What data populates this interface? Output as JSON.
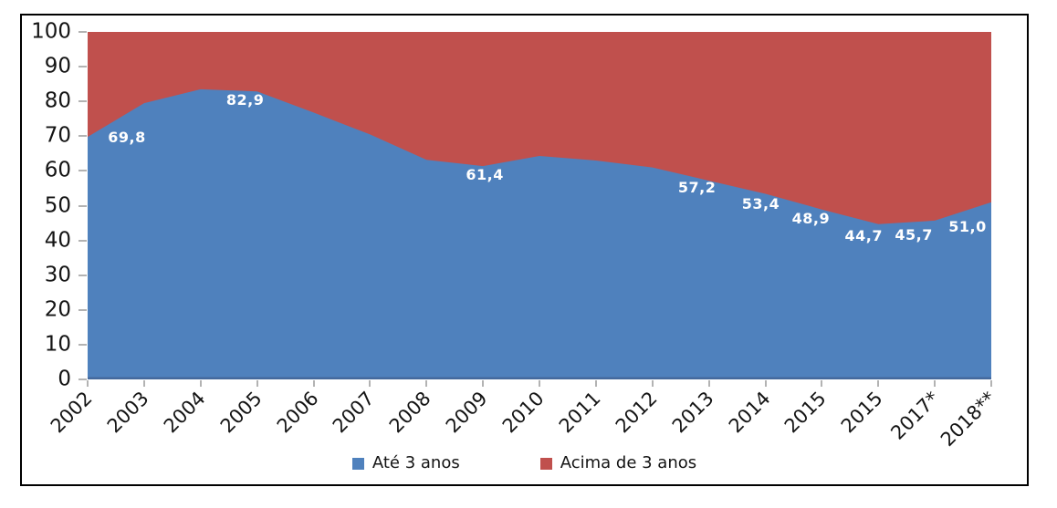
{
  "chart_data": {
    "type": "area",
    "variant": "100%-stacked",
    "title": "",
    "categories": [
      "2002",
      "2003",
      "2004",
      "2005",
      "2006",
      "2007",
      "2008",
      "2009",
      "2010",
      "2011",
      "2012",
      "2013",
      "2014",
      "2015",
      "2015",
      "2017*",
      "2018**"
    ],
    "series": [
      {
        "name": "Até 3 anos",
        "color": "#4F81BD",
        "values": [
          69.8,
          79.5,
          83.5,
          82.9,
          76.8,
          70.5,
          63.2,
          61.4,
          64.3,
          63.0,
          61.0,
          57.2,
          53.4,
          48.9,
          44.7,
          45.7,
          51.0
        ]
      },
      {
        "name": "Acima de 3 anos",
        "color": "#C0504D",
        "values": [
          30.2,
          20.5,
          16.5,
          17.1,
          23.2,
          29.5,
          36.8,
          38.6,
          35.7,
          37.0,
          39.0,
          42.8,
          46.6,
          51.1,
          55.3,
          54.3,
          49.0
        ]
      }
    ],
    "data_labels": [
      {
        "index": 0,
        "category": "2002",
        "text": "69,8",
        "value": 69.8
      },
      {
        "index": 3,
        "category": "2005",
        "text": "82,9",
        "value": 82.9
      },
      {
        "index": 7,
        "category": "2009",
        "text": "61,4",
        "value": 61.4
      },
      {
        "index": 11,
        "category": "2013",
        "text": "57,2",
        "value": 57.2
      },
      {
        "index": 12,
        "category": "2014",
        "text": "53,4",
        "value": 53.4
      },
      {
        "index": 13,
        "category": "2015",
        "text": "48,9",
        "value": 48.9
      },
      {
        "index": 14,
        "category": "2015",
        "text": "44,7",
        "value": 44.7
      },
      {
        "index": 15,
        "category": "2017*",
        "text": "45,7",
        "value": 45.7
      },
      {
        "index": 16,
        "category": "2018**",
        "text": "51,0",
        "value": 51.0
      }
    ],
    "y_axis": {
      "min": 0,
      "max": 100,
      "step": 10,
      "tick_labels": [
        "0",
        "10",
        "20",
        "30",
        "40",
        "50",
        "60",
        "70",
        "80",
        "90",
        "100"
      ]
    },
    "x_axis": {
      "rotation": -45,
      "tick_labels": [
        "2002",
        "2003",
        "2004",
        "2005",
        "2006",
        "2007",
        "2008",
        "2009",
        "2010",
        "2011",
        "2012",
        "2013",
        "2014",
        "2015",
        "2015",
        "2017*",
        "2018**"
      ]
    },
    "legend": {
      "position": "bottom",
      "items": [
        "Até 3 anos",
        "Acima de 3 anos"
      ]
    },
    "colors": {
      "axis_line": "#44699D",
      "tick": "#b3b3b3",
      "label_text": "#141414",
      "data_label_text": "#ffffff",
      "frame_border": "#000000",
      "background": "#ffffff"
    }
  }
}
